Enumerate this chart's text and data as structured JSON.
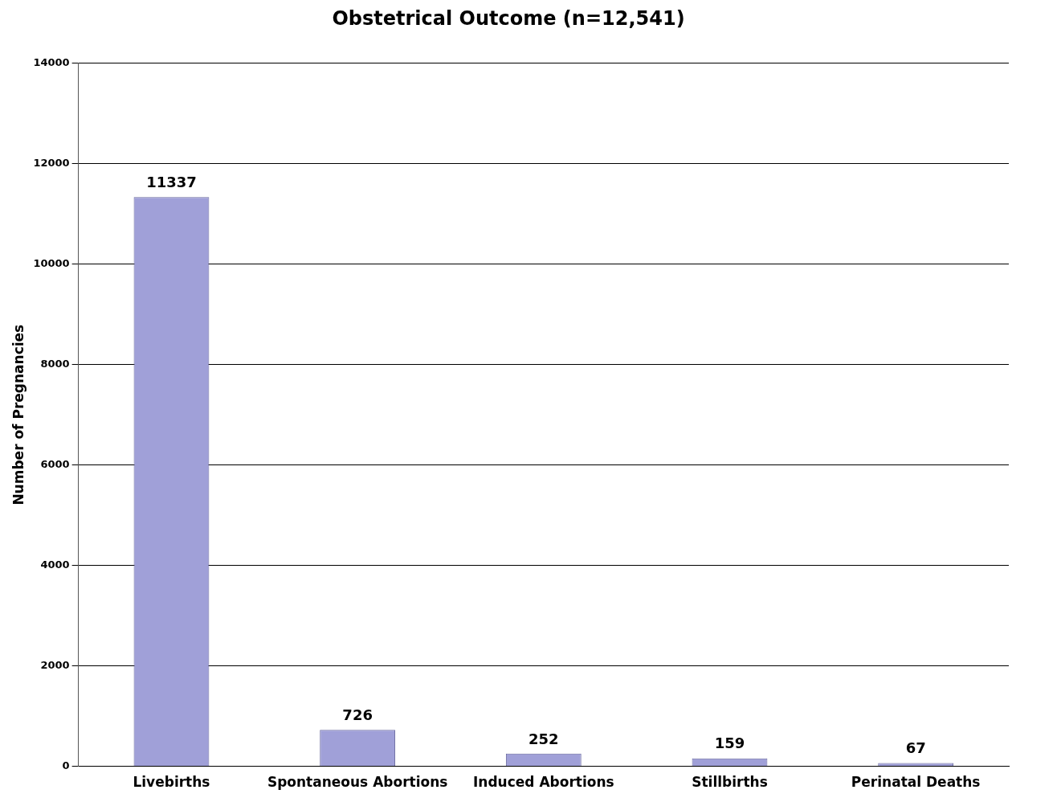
{
  "chart_data": {
    "type": "bar",
    "title": "Obstetrical Outcome (n=12,541)",
    "ylabel": "Number of Pregnancies",
    "categories": [
      "Livebirths",
      "Spontaneous Abortions",
      "Induced Abortions",
      "Stillbirths",
      "Perinatal Deaths"
    ],
    "values": [
      11337,
      726,
      252,
      159,
      67
    ],
    "color": "#a0a0d8",
    "ylim": [
      0,
      14000
    ],
    "yticks": [
      0,
      2000,
      4000,
      6000,
      8000,
      10000,
      12000,
      14000
    ],
    "grid": "y",
    "data_labels": true
  }
}
